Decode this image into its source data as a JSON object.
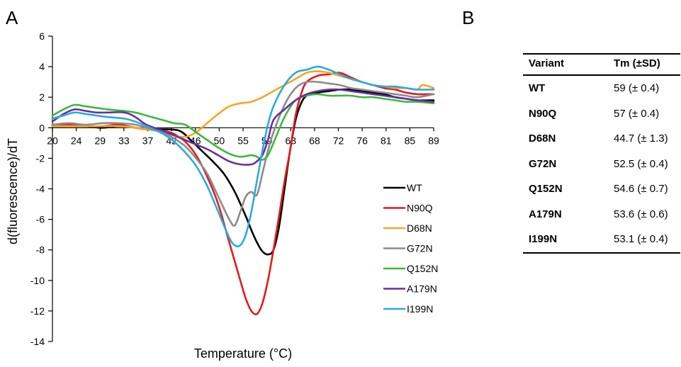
{
  "figure": {
    "panel_a": "A",
    "panel_b": "B"
  },
  "chart_data": {
    "type": "line",
    "xlabel": "Temperature (°C)",
    "ylabel": "d(fluorescence)/dT",
    "xlim": [
      20,
      89
    ],
    "ylim": [
      -14,
      6
    ],
    "x_ticks": [
      "20",
      "24",
      "29",
      "33",
      "37",
      "42",
      "46",
      "50",
      "55",
      "59",
      "63",
      "68",
      "72",
      "76",
      "81",
      "85",
      "89"
    ],
    "y_ticks": [
      6,
      4,
      2,
      0,
      -2,
      -4,
      -6,
      -8,
      -10,
      -12,
      -14
    ],
    "legend_position": "right",
    "grid": false,
    "series": [
      {
        "name": "WT",
        "color": "#000000",
        "x": [
          20,
          23,
          26,
          29,
          32,
          35,
          37,
          40,
          43,
          45,
          47,
          49,
          51,
          53,
          55,
          56,
          57,
          58,
          59,
          60,
          61,
          62,
          63,
          64,
          65,
          66,
          68,
          70,
          72,
          74,
          76,
          78,
          80,
          82,
          84,
          86,
          89
        ],
        "y": [
          0.1,
          0.1,
          0.1,
          0,
          0.1,
          0,
          -0.1,
          -0.1,
          -0.2,
          -0.8,
          -1.5,
          -2.2,
          -3,
          -4.2,
          -5.8,
          -6.7,
          -7.5,
          -8.1,
          -8.3,
          -8,
          -6.5,
          -4,
          -1.5,
          0.5,
          1.6,
          2.1,
          2.3,
          2.4,
          2.5,
          2.5,
          2.4,
          2.3,
          2.2,
          2,
          1.9,
          1.8,
          1.8
        ]
      },
      {
        "name": "N90Q",
        "color": "#e41a1c",
        "x": [
          20,
          23,
          26,
          29,
          32,
          35,
          37,
          40,
          42,
          44,
          46,
          48,
          50,
          52,
          54,
          55,
          56,
          57,
          58,
          59,
          60,
          61,
          62,
          63,
          64,
          65,
          66,
          68,
          70,
          72,
          74,
          76,
          78,
          80,
          82,
          84,
          86,
          89
        ],
        "y": [
          0.2,
          0.2,
          0.1,
          0.1,
          0.2,
          0,
          -0.1,
          -0.2,
          -0.4,
          -0.9,
          -1.8,
          -3.2,
          -5,
          -7.5,
          -10,
          -11.2,
          -12,
          -12.2,
          -11.5,
          -10,
          -8,
          -5.8,
          -3.5,
          -1.5,
          0.8,
          2.2,
          3,
          3.4,
          3.5,
          3.6,
          3.3,
          3,
          2.8,
          2.6,
          2.5,
          2.3,
          2.2,
          2.2
        ]
      },
      {
        "name": "D68N",
        "color": "#f5a623",
        "x": [
          20,
          23,
          26,
          29,
          32,
          35,
          37,
          40,
          42,
          44,
          46,
          48,
          50,
          52,
          54,
          56,
          58,
          60,
          62,
          64,
          66,
          68,
          70,
          72,
          74,
          76,
          78,
          80,
          82,
          84,
          86,
          87,
          89
        ],
        "y": [
          0.1,
          0.1,
          0.1,
          0.1,
          0.1,
          0,
          -0.1,
          -0.3,
          -0.5,
          -0.6,
          -0.3,
          0.3,
          0.9,
          1.4,
          1.6,
          1.7,
          2,
          2.4,
          2.8,
          3.2,
          3.6,
          3.7,
          3.6,
          3.4,
          3.2,
          3,
          2.8,
          2.7,
          2.6,
          2.6,
          2.5,
          2.8,
          2.6
        ]
      },
      {
        "name": "G72N",
        "color": "#8c8c8c",
        "x": [
          20,
          23,
          26,
          29,
          32,
          35,
          37,
          40,
          42,
          44,
          46,
          48,
          50,
          52,
          53,
          54,
          55,
          56,
          57,
          58,
          59,
          60,
          62,
          64,
          66,
          68,
          70,
          72,
          74,
          76,
          78,
          80,
          82,
          84,
          86,
          89
        ],
        "y": [
          0.2,
          0.3,
          0.2,
          0.3,
          0.3,
          0.2,
          0,
          -0.3,
          -0.7,
          -1.2,
          -2,
          -3,
          -4.5,
          -6,
          -6.4,
          -5.5,
          -4.5,
          -4.2,
          -4.4,
          -3,
          -1.5,
          -0.3,
          1.5,
          2.6,
          3,
          3,
          2.9,
          2.8,
          2.6,
          2.5,
          2.4,
          2.3,
          2.2,
          2.1,
          2,
          2.2
        ]
      },
      {
        "name": "Q152N",
        "color": "#3cb93c",
        "x": [
          20,
          22,
          24,
          26,
          28,
          30,
          33,
          35,
          37,
          40,
          42,
          44,
          46,
          48,
          50,
          52,
          54,
          56,
          57,
          58,
          59,
          60,
          62,
          64,
          66,
          68,
          70,
          72,
          74,
          76,
          78,
          80,
          82,
          84,
          86,
          89
        ],
        "y": [
          0.8,
          1.2,
          1.5,
          1.4,
          1.3,
          1.2,
          1.1,
          1,
          0.8,
          0.5,
          0.3,
          0.2,
          -0.3,
          -0.8,
          -1.3,
          -1.7,
          -1.9,
          -1.8,
          -1.9,
          -2.1,
          -1.8,
          -1,
          0.7,
          1.8,
          2.1,
          2.2,
          2.1,
          2.1,
          2.1,
          2,
          2,
          1.9,
          1.8,
          1.7,
          1.7,
          1.6
        ]
      },
      {
        "name": "A179N",
        "color": "#6a2fa0",
        "x": [
          20,
          22,
          24,
          26,
          28,
          30,
          33,
          35,
          37,
          40,
          42,
          44,
          46,
          48,
          50,
          52,
          54,
          56,
          57,
          58,
          59,
          60,
          62,
          64,
          66,
          68,
          70,
          72,
          74,
          76,
          78,
          80,
          82,
          84,
          86,
          89
        ],
        "y": [
          0.4,
          0.9,
          1.2,
          1.1,
          1,
          1,
          1,
          0.7,
          0.2,
          -0.2,
          -0.5,
          -0.8,
          -1.1,
          -1.4,
          -1.8,
          -2.2,
          -2.4,
          -2.4,
          -2.2,
          -1.8,
          -0.8,
          0.5,
          1.2,
          1.8,
          2.2,
          2.4,
          2.5,
          2.5,
          2.4,
          2.3,
          2.2,
          2.1,
          2,
          1.9,
          1.8,
          1.7
        ]
      },
      {
        "name": "I199N",
        "color": "#29abe2",
        "x": [
          20,
          22,
          24,
          26,
          28,
          30,
          33,
          35,
          37,
          40,
          42,
          44,
          46,
          48,
          50,
          52,
          53,
          54,
          55,
          56,
          57,
          58,
          59,
          60,
          62,
          64,
          66,
          68,
          70,
          72,
          74,
          76,
          78,
          80,
          82,
          84,
          86,
          89
        ],
        "y": [
          0.6,
          0.8,
          1,
          0.9,
          0.8,
          0.7,
          0.6,
          0.4,
          0.1,
          -0.4,
          -0.9,
          -1.6,
          -2.5,
          -3.8,
          -5.5,
          -7.2,
          -7.7,
          -7.7,
          -7,
          -5.5,
          -3.5,
          -1.5,
          0.2,
          1.4,
          2.8,
          3.6,
          3.8,
          4,
          3.8,
          3.5,
          3.2,
          3,
          2.8,
          2.7,
          2.7,
          2.6,
          2.5,
          2.5
        ]
      }
    ]
  },
  "table": {
    "headers": [
      "Variant",
      "Tm (±SD)"
    ],
    "rows": [
      [
        "WT",
        "59 (± 0.4)"
      ],
      [
        "N90Q",
        "57 (± 0.4)"
      ],
      [
        "D68N",
        "44.7 (± 1.3)"
      ],
      [
        "G72N",
        "52.5 (± 0.4)"
      ],
      [
        "Q152N",
        "54.6 (± 0.7)"
      ],
      [
        "A179N",
        "53.6 (± 0.6)"
      ],
      [
        "I199N",
        "53.1 (± 0.4)"
      ]
    ]
  }
}
